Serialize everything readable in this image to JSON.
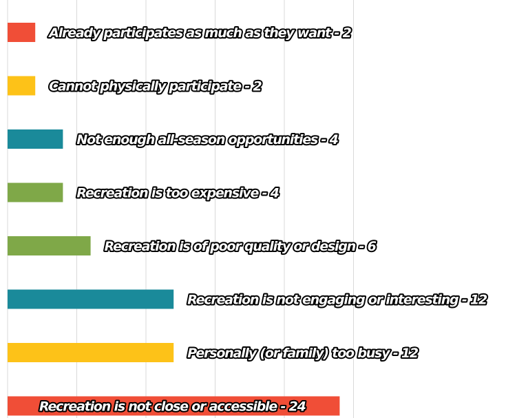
{
  "chart_data": {
    "type": "bar",
    "orientation": "horizontal",
    "categories": [
      "Already participates as much as they want",
      "Cannot physically participate",
      "Not enough all-season opportunities",
      "Recreation is too expensive",
      "Recreation is of poor quality or design",
      "Recreation is not engaging or interesting",
      "Personally (or family) too busy",
      "Recreation is not close or accessible"
    ],
    "values": [
      2,
      2,
      4,
      4,
      6,
      12,
      12,
      24
    ],
    "data_labels": [
      "Already participates as much as they want - 2",
      "Cannot physically participate - 2",
      "Not enough all-season opportunities - 4",
      "Recreation is too expensive - 4",
      "Recreation is of poor quality or design - 6",
      "Recreation is not engaging or interesting - 12",
      "Personally (or family) too busy - 12",
      "Recreation is not close or accessible - 24"
    ],
    "colors": [
      "#f04e37",
      "#fdc218",
      "#1a8a9a",
      "#7fa848",
      "#7fa848",
      "#1a8a9a",
      "#fdc218",
      "#f04e37"
    ],
    "xlim": [
      0,
      25
    ],
    "gridlines_at": [
      0,
      5,
      10,
      15,
      20,
      25
    ],
    "grid": true,
    "axis_labels_visible": false,
    "legend": "none"
  }
}
